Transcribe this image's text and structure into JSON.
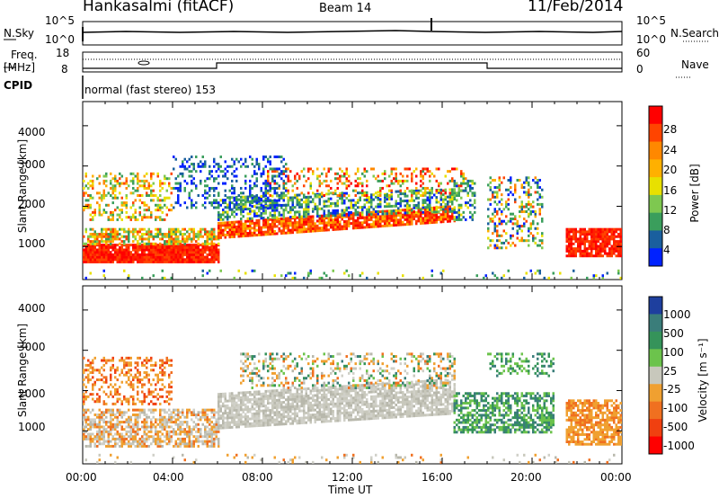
{
  "header": {
    "station": "Hankasalmi (fitACF)",
    "beam": "Beam 14",
    "date": "11/Feb/2014"
  },
  "strip_labels": {
    "nsky": "N.Sky",
    "nsearch": "N.Search",
    "freq": "Freq.",
    "mhz": "[MHz]",
    "nave": "Nave",
    "cpid": "CPID",
    "cpid_value": "normal (fast stereo) 153"
  },
  "strip_ticks": {
    "noise_left": [
      "10^5",
      "10^0"
    ],
    "noise_right": [
      "10^5",
      "10^0"
    ],
    "freq_left": [
      "18",
      "8"
    ],
    "nave_right": [
      "60",
      "0"
    ]
  },
  "chart_data": [
    {
      "type": "heatmap",
      "panel": "power",
      "ylabel": "Slant Range [km]",
      "yticks": [
        "4000",
        "3000",
        "2000",
        "1000"
      ],
      "ylim": [
        180,
        4600
      ],
      "xlim_hours": [
        0,
        24
      ],
      "colorbar": {
        "label": "Power [dB]",
        "ticks": [
          "28",
          "24",
          "20",
          "16",
          "12",
          "8",
          "4"
        ],
        "colors": [
          "#ff0000",
          "#ff4400",
          "#ff8800",
          "#ffb000",
          "#e8e000",
          "#7ec850",
          "#3a9e5c",
          "#1a5f9e",
          "#0022ff"
        ]
      }
    },
    {
      "type": "heatmap",
      "panel": "velocity",
      "ylabel": "Slant Range [km]",
      "yticks": [
        "4000",
        "3000",
        "2000",
        "1000"
      ],
      "ylim": [
        180,
        4600
      ],
      "xlim_hours": [
        0,
        24
      ],
      "xlabel": "Time UT",
      "xticks": [
        "00:00",
        "04:00",
        "08:00",
        "12:00",
        "16:00",
        "20:00",
        "00:00"
      ],
      "colorbar": {
        "label": "Velocity [m s⁻¹]",
        "ticks": [
          "1000",
          "500",
          "100",
          "25",
          "-25",
          "-100",
          "-500",
          "-1000"
        ],
        "colors": [
          "#1e3f9e",
          "#3a7d7a",
          "#35935a",
          "#6cc34c",
          "#c8c8bc",
          "#f0a030",
          "#f07020",
          "#f04010",
          "#ff0000"
        ]
      }
    }
  ]
}
